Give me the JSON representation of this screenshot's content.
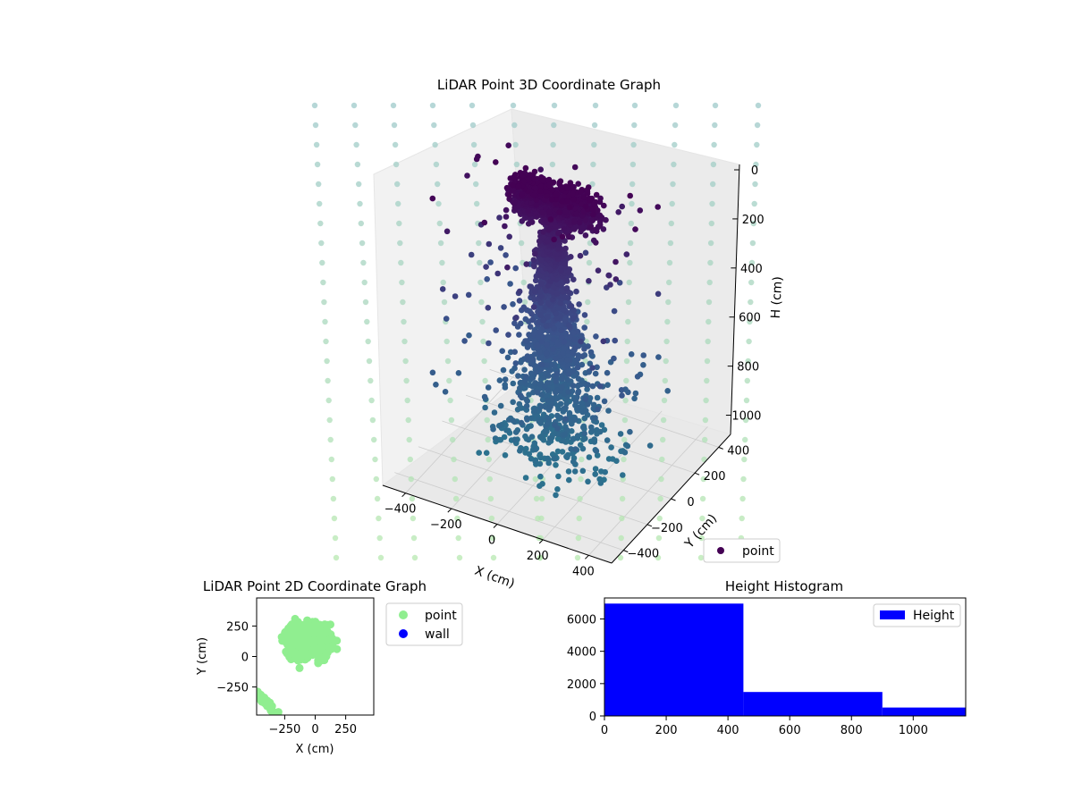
{
  "figure": {
    "background": "#ffffff",
    "colors": {
      "point_dark": "#440154",
      "point_mid": "#3b528b",
      "point_teal": "#2c728e",
      "wall_top": "#9ec9c9",
      "wall_bottom": "#b7e8b0",
      "point_2d": "#90ee90",
      "wall_2d": "#0000ff",
      "hist_bar": "#0000ff",
      "pane": "#f2f2f2",
      "grid": "#cccccc"
    }
  },
  "chart_data": [
    {
      "id": "lidar-3d",
      "type": "scatter",
      "projection": "3d",
      "title": "LiDAR Point 3D Coordinate Graph",
      "xlabel": "X (cm)",
      "ylabel": "Y (cm)",
      "zlabel": "H (cm)",
      "x_ticks": [
        "−400",
        "−200",
        "0",
        "200",
        "400"
      ],
      "y_ticks": [
        "−400",
        "−200",
        "0",
        "200",
        "400"
      ],
      "z_ticks": [
        "0",
        "200",
        "400",
        "600",
        "800",
        "1000"
      ],
      "z_inverted": true,
      "xlim": [
        -500,
        500
      ],
      "ylim": [
        -500,
        500
      ],
      "zlim": [
        0,
        1100
      ],
      "colormap": "viridis",
      "legend": {
        "entries": [
          "point"
        ],
        "position": "lower-right"
      },
      "series": [
        {
          "name": "point",
          "cluster": {
            "center_x": 0,
            "center_y": 0,
            "h_range": [
              0,
              1100
            ],
            "dense_top_range": [
              0,
              450
            ]
          }
        },
        {
          "kind": "wall",
          "description_of_marks": "sparse translucent dots on enclosing walls",
          "opacity": 0.5
        }
      ]
    },
    {
      "id": "lidar-2d",
      "type": "scatter",
      "title": "LiDAR Point 2D Coordinate Graph",
      "xlabel": "X (cm)",
      "ylabel": "Y (cm)",
      "x_ticks": [
        "−250",
        "0",
        "250"
      ],
      "y_ticks": [
        "250",
        "0",
        "−250"
      ],
      "xlim": [
        -480,
        480
      ],
      "ylim": [
        -480,
        480
      ],
      "legend": {
        "entries": [
          "point",
          "wall"
        ],
        "position": "outside-right"
      },
      "series": [
        {
          "name": "point",
          "color": "#90ee90"
        },
        {
          "name": "wall",
          "color": "#0000ff"
        }
      ]
    },
    {
      "id": "height-hist",
      "type": "bar",
      "title": "Height Histogram",
      "xlabel": "",
      "ylabel": "",
      "bins": [
        {
          "from": 0,
          "to": 450,
          "count": 6950
        },
        {
          "from": 450,
          "to": 900,
          "count": 1480
        },
        {
          "from": 900,
          "to": 1170,
          "count": 520
        }
      ],
      "xlim": [
        0,
        1170
      ],
      "ylim": [
        0,
        7300
      ],
      "x_ticks": [
        0,
        200,
        400,
        600,
        800,
        1000
      ],
      "y_ticks": [
        0,
        2000,
        4000,
        6000
      ],
      "x_tick_labels": [
        "0",
        "200",
        "400",
        "600",
        "800",
        "1000"
      ],
      "y_tick_labels": [
        "0",
        "2000",
        "4000",
        "6000"
      ],
      "legend": {
        "entries": [
          "Height"
        ],
        "position": "top-right"
      }
    }
  ]
}
